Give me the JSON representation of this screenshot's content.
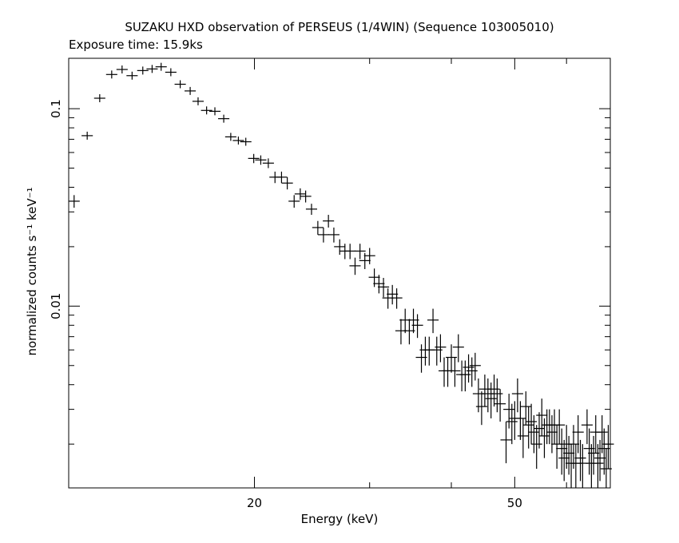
{
  "chart_data": {
    "type": "scatter",
    "title": "SUZAKU HXD observation of PERSEUS (1/4WIN) (Sequence 103005010)",
    "subtitle": "Exposure time: 15.9ks",
    "xlabel": "Energy (keV)",
    "ylabel": "normalized counts s⁻¹ keV⁻¹",
    "xscale": "log",
    "yscale": "log",
    "xlim": [
      10.4,
      70
    ],
    "ylim": [
      0.0012,
      0.18
    ],
    "xticks": [
      {
        "value": 20,
        "label": "20"
      },
      {
        "value": 50,
        "label": "50"
      }
    ],
    "yticks": [
      {
        "value": 0.1,
        "label": "0.1"
      },
      {
        "value": 0.01,
        "label": "0.01"
      }
    ],
    "grid": false,
    "legend": "none",
    "marker": "cross with error bars",
    "color": "#000000",
    "points": [
      [
        10.6,
        0.034,
        0.0025
      ],
      [
        11.1,
        0.073,
        0.003
      ],
      [
        11.6,
        0.113,
        0.004
      ],
      [
        12.1,
        0.149,
        0.005
      ],
      [
        12.55,
        0.158,
        0.005
      ],
      [
        13.0,
        0.147,
        0.005
      ],
      [
        13.5,
        0.156,
        0.005
      ],
      [
        13.95,
        0.159,
        0.005
      ],
      [
        14.4,
        0.163,
        0.005
      ],
      [
        14.9,
        0.153,
        0.005
      ],
      [
        15.4,
        0.133,
        0.004
      ],
      [
        15.95,
        0.123,
        0.004
      ],
      [
        16.4,
        0.109,
        0.004
      ],
      [
        16.9,
        0.098,
        0.004
      ],
      [
        17.4,
        0.097,
        0.004
      ],
      [
        17.95,
        0.089,
        0.004
      ],
      [
        18.4,
        0.072,
        0.003
      ],
      [
        18.9,
        0.069,
        0.003
      ],
      [
        19.4,
        0.068,
        0.003
      ],
      [
        19.95,
        0.056,
        0.003
      ],
      [
        20.45,
        0.055,
        0.003
      ],
      [
        21.0,
        0.053,
        0.003
      ],
      [
        21.5,
        0.045,
        0.003
      ],
      [
        22.0,
        0.045,
        0.003
      ],
      [
        22.45,
        0.042,
        0.003
      ],
      [
        23.0,
        0.034,
        0.0025
      ],
      [
        23.5,
        0.037,
        0.0025
      ],
      [
        23.95,
        0.036,
        0.0025
      ],
      [
        24.45,
        0.031,
        0.002
      ],
      [
        25.0,
        0.025,
        0.002
      ],
      [
        25.5,
        0.023,
        0.002
      ],
      [
        25.95,
        0.027,
        0.002
      ],
      [
        26.45,
        0.023,
        0.002
      ],
      [
        27.0,
        0.02,
        0.0018
      ],
      [
        27.5,
        0.019,
        0.0017
      ],
      [
        28.0,
        0.019,
        0.0017
      ],
      [
        28.5,
        0.016,
        0.0016
      ],
      [
        29.0,
        0.019,
        0.0017
      ],
      [
        29.5,
        0.017,
        0.0016
      ],
      [
        30.0,
        0.018,
        0.0017
      ],
      [
        30.5,
        0.014,
        0.0015
      ],
      [
        31.0,
        0.013,
        0.0014
      ],
      [
        31.5,
        0.0125,
        0.0014
      ],
      [
        32.0,
        0.011,
        0.0013
      ],
      [
        32.5,
        0.0115,
        0.0013
      ],
      [
        33.0,
        0.011,
        0.0013
      ],
      [
        33.5,
        0.0075,
        0.0011
      ],
      [
        34.0,
        0.0085,
        0.0012
      ],
      [
        34.5,
        0.0075,
        0.0011
      ],
      [
        35.0,
        0.0085,
        0.0012
      ],
      [
        35.5,
        0.008,
        0.0011
      ],
      [
        36.0,
        0.0055,
        0.0009
      ],
      [
        36.5,
        0.006,
        0.001
      ],
      [
        37.0,
        0.006,
        0.001
      ],
      [
        37.5,
        0.0085,
        0.0012
      ],
      [
        38.0,
        0.006,
        0.001
      ],
      [
        38.5,
        0.0062,
        0.001
      ],
      [
        39.0,
        0.0047,
        0.0008
      ],
      [
        39.5,
        0.0047,
        0.0008
      ],
      [
        40.0,
        0.0055,
        0.0009
      ],
      [
        40.5,
        0.0047,
        0.0008
      ],
      [
        41.0,
        0.0062,
        0.001
      ],
      [
        41.5,
        0.0045,
        0.0008
      ],
      [
        42.0,
        0.0045,
        0.0008
      ],
      [
        42.5,
        0.0049,
        0.0008
      ],
      [
        43.0,
        0.0047,
        0.0008
      ],
      [
        43.5,
        0.005,
        0.0008
      ],
      [
        44.0,
        0.0036,
        0.0007
      ],
      [
        44.5,
        0.0031,
        0.0006
      ],
      [
        45.0,
        0.0038,
        0.0007
      ],
      [
        45.5,
        0.0036,
        0.0007
      ],
      [
        46.0,
        0.0034,
        0.0007
      ],
      [
        46.5,
        0.0038,
        0.0007
      ],
      [
        47.0,
        0.0036,
        0.0007
      ],
      [
        47.5,
        0.0032,
        0.0006
      ],
      [
        48.5,
        0.0021,
        0.0005
      ],
      [
        49.0,
        0.003,
        0.0006
      ],
      [
        49.5,
        0.0026,
        0.0006
      ],
      [
        50.0,
        0.0027,
        0.0006
      ],
      [
        50.5,
        0.0036,
        0.0007
      ],
      [
        51.0,
        0.0027,
        0.0006
      ],
      [
        51.5,
        0.0022,
        0.0005
      ],
      [
        52.0,
        0.0031,
        0.0006
      ],
      [
        52.5,
        0.0025,
        0.0006
      ],
      [
        53.0,
        0.0026,
        0.0006
      ],
      [
        53.5,
        0.0023,
        0.0005
      ],
      [
        54.0,
        0.002,
        0.0005
      ],
      [
        54.5,
        0.0024,
        0.0005
      ],
      [
        55.0,
        0.0028,
        0.0006
      ],
      [
        55.5,
        0.0022,
        0.0005
      ],
      [
        56.0,
        0.0025,
        0.0005
      ],
      [
        56.5,
        0.0025,
        0.0005
      ],
      [
        57.0,
        0.0023,
        0.0005
      ],
      [
        57.5,
        0.0025,
        0.0005
      ],
      [
        58.0,
        0.002,
        0.0005
      ],
      [
        58.5,
        0.0025,
        0.0005
      ],
      [
        59.0,
        0.0019,
        0.0005
      ],
      [
        59.5,
        0.0017,
        0.0004
      ],
      [
        60.0,
        0.002,
        0.0005
      ],
      [
        60.5,
        0.0018,
        0.0004
      ],
      [
        61.0,
        0.0016,
        0.0004
      ],
      [
        61.5,
        0.002,
        0.0005
      ],
      [
        62.0,
        0.0016,
        0.0004
      ],
      [
        62.5,
        0.0023,
        0.0005
      ],
      [
        63.0,
        0.0017,
        0.0004
      ],
      [
        63.5,
        0.0016,
        0.0004
      ],
      [
        64.5,
        0.0025,
        0.0005
      ],
      [
        65.0,
        0.0019,
        0.0005
      ],
      [
        65.5,
        0.0016,
        0.0004
      ],
      [
        66.0,
        0.0018,
        0.0004
      ],
      [
        66.5,
        0.0023,
        0.0005
      ],
      [
        67.0,
        0.0016,
        0.0004
      ],
      [
        67.5,
        0.0017,
        0.0004
      ],
      [
        68.0,
        0.0023,
        0.0005
      ],
      [
        68.5,
        0.0019,
        0.0005
      ],
      [
        69.0,
        0.0015,
        0.0004
      ],
      [
        69.5,
        0.002,
        0.0005
      ]
    ]
  }
}
